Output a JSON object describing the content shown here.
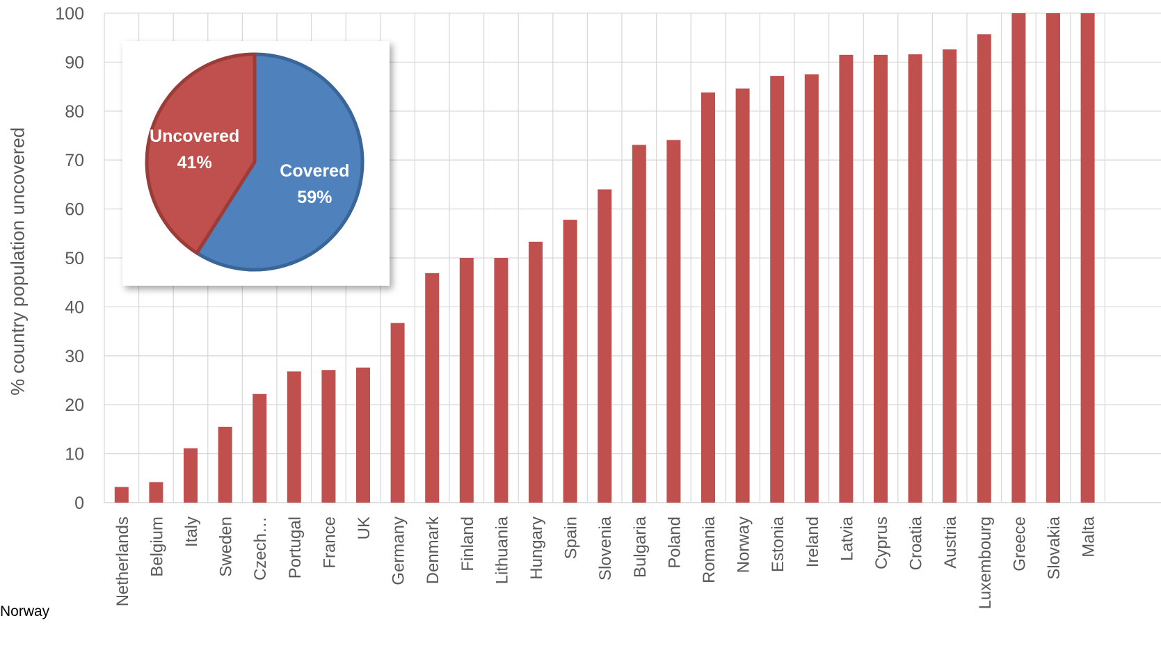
{
  "chart_data": [
    {
      "type": "bar",
      "ylabel": "% country population  uncovered",
      "ylim": [
        0,
        100
      ],
      "yticks": [
        0,
        10,
        20,
        30,
        40,
        50,
        60,
        70,
        80,
        90,
        100
      ],
      "grid": true,
      "categories": [
        "Netherlands",
        "Belgium",
        "Italy",
        "Sweden",
        "Czech…",
        "Portugal",
        "France",
        "UK",
        "Germany",
        "Denmark",
        "Finland",
        "Lithuania",
        "Hungary",
        "Spain",
        "Slovenia",
        "Bulgaria",
        "Poland",
        "Romania",
        "Norway",
        "Estonia",
        "Ireland",
        "Latvia",
        "Cyprus",
        "Croatia",
        "Austria",
        "Luxembourg",
        "Greece",
        "Slovakia",
        "Malta"
      ],
      "values": [
        3.2,
        4.2,
        11.1,
        15.5,
        22.2,
        26.8,
        27.1,
        27.6,
        36.7,
        46.9,
        50.0,
        50.0,
        53.3,
        57.8,
        64.0,
        73.1,
        74.1,
        83.8,
        84.6,
        87.2,
        87.5,
        91.5,
        91.5,
        91.6,
        92.6,
        95.7,
        100,
        100,
        100
      ],
      "color": "#C0504D"
    },
    {
      "type": "pie",
      "slices": [
        {
          "label": "Covered",
          "value": 59,
          "pct_label": "59%",
          "color": "#4F81BD"
        },
        {
          "label": "Uncovered",
          "value": 41,
          "pct_label": "41%",
          "color": "#C0504D"
        }
      ]
    }
  ],
  "stray_label": "Norway"
}
